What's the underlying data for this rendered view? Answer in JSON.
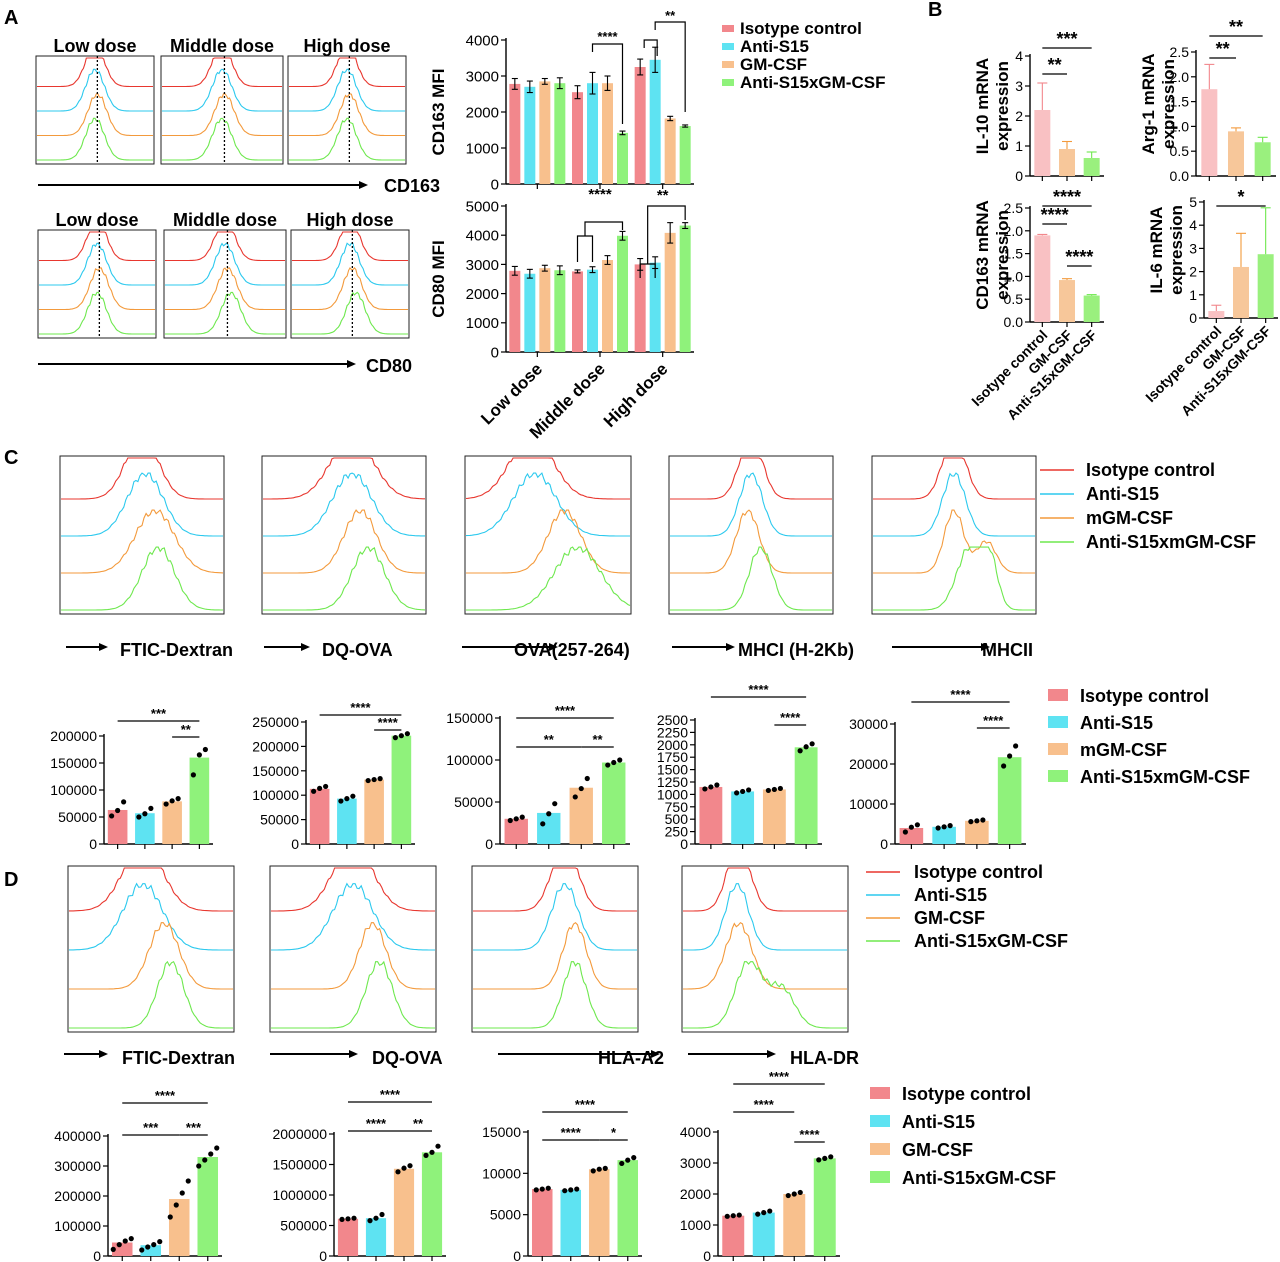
{
  "colors": {
    "isotype": "#f2878c",
    "isotype_line": "#e8372f",
    "antis15": "#5ee3f2",
    "antis15_line": "#2cc9ee",
    "gmcsf": "#f8c08d",
    "gmcsf_line": "#f39a3c",
    "combo": "#8ff27b",
    "combo_line": "#6ee84e",
    "pinkB": "#f9c1c3",
    "peachB": "#f7c79a",
    "greenB": "#9af07e"
  },
  "panels": {
    "A": "A",
    "B": "B",
    "C": "C",
    "D": "D"
  },
  "panelA": {
    "top_hist_titles": [
      "Low dose",
      "Middle dose",
      "High dose"
    ],
    "bottom_hist_titles": [
      "Low dose",
      "Middle dose",
      "High dose"
    ],
    "top_axis_label": "CD163",
    "bottom_axis_label": "CD80",
    "legend": [
      "Isotype control",
      "Anti-S15",
      "GM-CSF",
      "Anti-S15xGM-CSF"
    ]
  },
  "panelB": {
    "xticks": [
      "Isotype control",
      "GM-CSF",
      "Anti-S15xGM-CSF"
    ]
  },
  "panelC": {
    "markers": [
      "FTIC-Dextran",
      "DQ-OVA",
      "OVA(257-264)",
      "MHCI (H-2Kb)",
      "MHCII"
    ],
    "legend_hist": [
      "Isotype control",
      "Anti-S15",
      "mGM-CSF",
      "Anti-S15xmGM-CSF"
    ],
    "legend_bar": [
      "Isotype control",
      "Anti-S15",
      "mGM-CSF",
      "Anti-S15xmGM-CSF"
    ]
  },
  "panelD": {
    "markers": [
      "FTIC-Dextran",
      "DQ-OVA",
      "HLA-A2",
      "HLA-DR"
    ],
    "legend_hist": [
      "Isotype control",
      "Anti-S15",
      "GM-CSF",
      "Anti-S15xGM-CSF"
    ],
    "legend_bar": [
      "Isotype control",
      "Anti-S15",
      "GM-CSF",
      "Anti-S15xGM-CSF"
    ]
  },
  "chart_data": [
    {
      "id": "A_CD163",
      "type": "bar",
      "ylabel": "CD163 MFI",
      "ylim": [
        0,
        4000
      ],
      "yticks": [
        "0",
        "1000",
        "2000",
        "3000",
        "4000"
      ],
      "categories": [
        "Low dose",
        "Middle dose",
        "High dose"
      ],
      "series": [
        {
          "name": "Isotype control",
          "values": [
            2780,
            2550,
            3250
          ],
          "err": [
            150,
            180,
            220
          ]
        },
        {
          "name": "Anti-S15",
          "values": [
            2700,
            2800,
            3450
          ],
          "err": [
            160,
            300,
            350
          ]
        },
        {
          "name": "GM-CSF",
          "values": [
            2850,
            2800,
            1820
          ],
          "err": [
            80,
            200,
            60
          ]
        },
        {
          "name": "Anti-S15xGM-CSF",
          "values": [
            2800,
            1420,
            1610
          ],
          "err": [
            150,
            50,
            30
          ]
        }
      ],
      "sig": [
        {
          "group": 1,
          "from": 1,
          "to": 3,
          "label": "****"
        },
        {
          "group": 2,
          "from": 0,
          "to": 3,
          "label": "**"
        }
      ]
    },
    {
      "id": "A_CD80",
      "type": "bar",
      "ylabel": "CD80 MFI",
      "ylim": [
        0,
        5000
      ],
      "yticks": [
        "0",
        "1000",
        "2000",
        "3000",
        "4000",
        "5000"
      ],
      "categories": [
        "Low dose",
        "Middle dose",
        "High dose"
      ],
      "series": [
        {
          "name": "Isotype control",
          "values": [
            2780,
            2760,
            3000
          ],
          "err": [
            150,
            50,
            200
          ]
        },
        {
          "name": "Anti-S15",
          "values": [
            2680,
            2820,
            3060
          ],
          "err": [
            150,
            100,
            200
          ]
        },
        {
          "name": "GM-CSF",
          "values": [
            2870,
            3150,
            4080
          ],
          "err": [
            100,
            150,
            350
          ]
        },
        {
          "name": "Anti-S15xGM-CSF",
          "values": [
            2800,
            3980,
            4330
          ],
          "err": [
            150,
            150,
            100
          ]
        }
      ],
      "sig": [
        {
          "group": 1,
          "from": 0,
          "to": 3,
          "label": "****"
        },
        {
          "group": 2,
          "from": 0,
          "to": 3,
          "label": "**"
        }
      ]
    },
    {
      "id": "B_IL10",
      "type": "bar",
      "ylabel": [
        "IL-10 mRNA",
        "expression"
      ],
      "ylim": [
        0,
        4
      ],
      "yticks": [
        "0",
        "1",
        "2",
        "3",
        "4"
      ],
      "categories": [
        "Isotype control",
        "GM-CSF",
        "Anti-S15xGM-CSF"
      ],
      "values": [
        2.2,
        0.9,
        0.6
      ],
      "err": [
        0.9,
        0.25,
        0.2
      ],
      "sig": [
        {
          "from": 0,
          "to": 1,
          "label": "**"
        },
        {
          "from": 0,
          "to": 2,
          "label": "***"
        }
      ]
    },
    {
      "id": "B_Arg1",
      "type": "bar",
      "ylabel": [
        "Arg-1 mRNA",
        "expression"
      ],
      "ylim": [
        0,
        2.5
      ],
      "yticks": [
        "0.0",
        "0.5",
        "1.0",
        "1.5",
        "2.0",
        "2.5"
      ],
      "categories": [
        "Isotype control",
        "GM-CSF",
        "Anti-S15xGM-CSF"
      ],
      "values": [
        1.75,
        0.9,
        0.68
      ],
      "err": [
        0.5,
        0.07,
        0.1
      ],
      "sig": [
        {
          "from": 0,
          "to": 1,
          "label": "**"
        },
        {
          "from": 0,
          "to": 2,
          "label": "**"
        }
      ]
    },
    {
      "id": "B_CD163",
      "type": "bar",
      "ylabel": [
        "CD163 mRNA",
        "expression"
      ],
      "ylim": [
        0,
        2.5
      ],
      "yticks": [
        "0.0",
        "0.5",
        "1.0",
        "1.5",
        "2.0",
        "2.5"
      ],
      "categories": [
        "Isotype control",
        "GM-CSF",
        "Anti-S15xGM-CSF"
      ],
      "values": [
        1.9,
        0.92,
        0.58
      ],
      "err": [
        0.02,
        0.03,
        0.02
      ],
      "sig": [
        {
          "from": 0,
          "to": 1,
          "label": "****"
        },
        {
          "from": 0,
          "to": 2,
          "label": "****"
        },
        {
          "from": 1,
          "to": 2,
          "label": "****"
        }
      ]
    },
    {
      "id": "B_IL6",
      "type": "bar",
      "ylabel": [
        "IL-6 mRNA",
        "expression"
      ],
      "ylim": [
        0,
        5
      ],
      "yticks": [
        "0",
        "1",
        "2",
        "3",
        "4",
        "5"
      ],
      "categories": [
        "Isotype control",
        "GM-CSF",
        "Anti-S15xGM-CSF"
      ],
      "values": [
        0.3,
        2.2,
        2.75
      ],
      "err": [
        0.25,
        1.45,
        2.0
      ],
      "sig": [
        {
          "from": 0,
          "to": 2,
          "label": "*"
        }
      ]
    },
    {
      "id": "C_1",
      "type": "bar",
      "ylim": [
        0,
        200000
      ],
      "yticks": [
        "0",
        "50000",
        "100000",
        "150000",
        "200000"
      ],
      "categories": [
        "Isotype control",
        "Anti-S15",
        "mGM-CSF",
        "Anti-S15xmGM-CSF"
      ],
      "values": [
        63000,
        57000,
        79000,
        160000
      ],
      "points": [
        [
          52000,
          62000,
          78000
        ],
        [
          50000,
          56000,
          66000
        ],
        [
          74000,
          80000,
          84000
        ],
        [
          128000,
          165000,
          175000
        ]
      ],
      "sig": [
        {
          "from": 2,
          "to": 3,
          "label": "**"
        },
        {
          "from": 0,
          "to": 3,
          "label": "***"
        }
      ]
    },
    {
      "id": "C_2",
      "type": "bar",
      "ylim": [
        0,
        250000
      ],
      "yticks": [
        "0",
        "50000",
        "100000",
        "150000",
        "200000",
        "250000"
      ],
      "categories": [
        "Isotype control",
        "Anti-S15",
        "mGM-CSF",
        "Anti-S15xmGM-CSF"
      ],
      "values": [
        113000,
        93000,
        132000,
        222000
      ],
      "points": [
        [
          108000,
          114000,
          118000
        ],
        [
          88000,
          93000,
          98000
        ],
        [
          130000,
          132000,
          134000
        ],
        [
          218000,
          222000,
          226000
        ]
      ],
      "sig": [
        {
          "from": 2,
          "to": 3,
          "label": "****"
        },
        {
          "from": 0,
          "to": 3,
          "label": "****"
        }
      ]
    },
    {
      "id": "C_3",
      "type": "bar",
      "ylim": [
        0,
        150000
      ],
      "yticks": [
        "0",
        "50000",
        "100000",
        "150000"
      ],
      "categories": [
        "Isotype control",
        "Anti-S15",
        "mGM-CSF",
        "Anti-S15xmGM-CSF"
      ],
      "values": [
        30000,
        37000,
        67000,
        97000
      ],
      "points": [
        [
          28000,
          30000,
          32000
        ],
        [
          24000,
          36000,
          48000
        ],
        [
          56000,
          66000,
          78000
        ],
        [
          94000,
          97000,
          100000
        ]
      ],
      "sig": [
        {
          "from": 0,
          "to": 2,
          "label": "**"
        },
        {
          "from": 2,
          "to": 3,
          "label": "**"
        },
        {
          "from": 0,
          "to": 3,
          "label": "****"
        }
      ]
    },
    {
      "id": "C_4",
      "type": "bar",
      "ylim": [
        0,
        2500
      ],
      "yticks": [
        "0",
        "250",
        "500",
        "750",
        "1000",
        "1250",
        "1500",
        "1750",
        "2000",
        "2250",
        "2500"
      ],
      "categories": [
        "Isotype control",
        "Anti-S15",
        "mGM-CSF",
        "Anti-S15xmGM-CSF"
      ],
      "values": [
        1150,
        1060,
        1100,
        1950
      ],
      "points": [
        [
          1110,
          1150,
          1190
        ],
        [
          1030,
          1060,
          1090
        ],
        [
          1080,
          1100,
          1120
        ],
        [
          1880,
          1960,
          2020
        ]
      ],
      "sig": [
        {
          "from": 2,
          "to": 3,
          "label": "****"
        },
        {
          "from": 0,
          "to": 3,
          "label": "****"
        }
      ]
    },
    {
      "id": "C_5",
      "type": "bar",
      "ylim": [
        0,
        30000
      ],
      "yticks": [
        "0",
        "10000",
        "20000",
        "30000"
      ],
      "categories": [
        "Isotype control",
        "Anti-S15",
        "mGM-CSF",
        "Anti-S15xmGM-CSF"
      ],
      "values": [
        4000,
        4300,
        5800,
        21700
      ],
      "points": [
        [
          3000,
          4200,
          4800
        ],
        [
          4000,
          4300,
          4600
        ],
        [
          5600,
          5800,
          6000
        ],
        [
          19500,
          22000,
          24500
        ]
      ],
      "sig": [
        {
          "from": 2,
          "to": 3,
          "label": "****"
        },
        {
          "from": 0,
          "to": 3,
          "label": "****"
        }
      ]
    },
    {
      "id": "D_1",
      "type": "bar",
      "ylim": [
        0,
        400000
      ],
      "yticks": [
        "0",
        "100000",
        "200000",
        "300000",
        "400000"
      ],
      "categories": [
        "Isotype control",
        "Anti-S15",
        "GM-CSF",
        "Anti-S15xGM-CSF"
      ],
      "values": [
        45000,
        36000,
        190000,
        330000
      ],
      "points": [
        [
          22000,
          38000,
          50000,
          58000
        ],
        [
          20000,
          30000,
          38000,
          48000
        ],
        [
          130000,
          170000,
          210000,
          250000
        ],
        [
          300000,
          320000,
          340000,
          360000
        ]
      ],
      "sig": [
        {
          "from": 0,
          "to": 2,
          "label": "***"
        },
        {
          "from": 2,
          "to": 3,
          "label": "***"
        },
        {
          "from": 0,
          "to": 3,
          "label": "****"
        }
      ]
    },
    {
      "id": "D_2",
      "type": "bar",
      "ylim": [
        0,
        2000000
      ],
      "yticks": [
        "0",
        "500000",
        "1000000",
        "1500000",
        "2000000"
      ],
      "categories": [
        "Isotype control",
        "Anti-S15",
        "GM-CSF",
        "Anti-S15xGM-CSF"
      ],
      "values": [
        610000,
        620000,
        1430000,
        1700000
      ],
      "points": [
        [
          600000,
          610000,
          620000
        ],
        [
          580000,
          620000,
          680000
        ],
        [
          1380000,
          1440000,
          1480000
        ],
        [
          1650000,
          1700000,
          1800000
        ]
      ],
      "sig": [
        {
          "from": 0,
          "to": 2,
          "label": "****"
        },
        {
          "from": 2,
          "to": 3,
          "label": "**"
        },
        {
          "from": 0,
          "to": 3,
          "label": "****"
        }
      ]
    },
    {
      "id": "D_3",
      "type": "bar",
      "ylim": [
        0,
        15000
      ],
      "yticks": [
        "0",
        "5000",
        "10000",
        "15000"
      ],
      "categories": [
        "Isotype control",
        "Anti-S15",
        "GM-CSF",
        "Anti-S15xGM-CSF"
      ],
      "values": [
        8100,
        8000,
        10500,
        11600
      ],
      "points": [
        [
          8000,
          8100,
          8200
        ],
        [
          7900,
          8000,
          8100
        ],
        [
          10300,
          10500,
          10600
        ],
        [
          11200,
          11600,
          11900
        ]
      ],
      "sig": [
        {
          "from": 0,
          "to": 2,
          "label": "****"
        },
        {
          "from": 2,
          "to": 3,
          "label": "*"
        },
        {
          "from": 0,
          "to": 3,
          "label": "****"
        }
      ]
    },
    {
      "id": "D_4",
      "type": "bar",
      "ylim": [
        0,
        4000
      ],
      "yticks": [
        "0",
        "1000",
        "2000",
        "3000",
        "4000"
      ],
      "categories": [
        "Isotype control",
        "Anti-S15",
        "GM-CSF",
        "Anti-S15xGM-CSF"
      ],
      "values": [
        1300,
        1400,
        2000,
        3150
      ],
      "points": [
        [
          1280,
          1300,
          1320
        ],
        [
          1350,
          1400,
          1450
        ],
        [
          1950,
          2000,
          2050
        ],
        [
          3100,
          3150,
          3200
        ]
      ],
      "sig": [
        {
          "from": 2,
          "to": 3,
          "label": "****"
        },
        {
          "from": 0,
          "to": 2,
          "label": "****"
        },
        {
          "from": 0,
          "to": 3,
          "label": "****"
        }
      ]
    }
  ]
}
